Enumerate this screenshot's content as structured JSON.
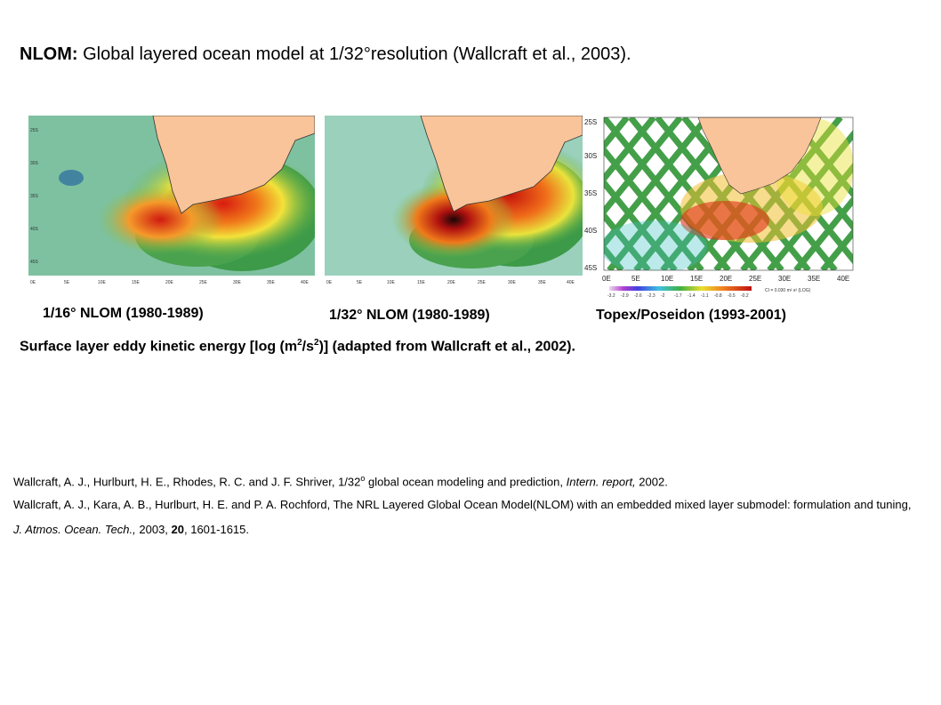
{
  "header": {
    "title_bold": "NLOM:",
    "title_rest": " Global layered ocean model at 1/32°resolution (Wallcraft et al., 2003)."
  },
  "panels": [
    {
      "label": "1/16° NLOM (1980-1989)",
      "lat_ticks": [
        "25S",
        "30S",
        "35S",
        "40S",
        "45S"
      ],
      "lon_ticks": [
        "0E",
        "5E",
        "10E",
        "15E",
        "20E",
        "25E",
        "30E",
        "35E",
        "40E"
      ]
    },
    {
      "label": "1/32° NLOM (1980-1989)",
      "lat_ticks": [],
      "lon_ticks": [
        "0E",
        "5E",
        "10E",
        "15E",
        "20E",
        "25E",
        "30E",
        "35E",
        "40E"
      ]
    },
    {
      "label": "Topex/Poseidon (1993-2001)",
      "lat_ticks": [
        "25S",
        "30S",
        "35S",
        "40S",
        "45S"
      ],
      "lon_ticks": [
        "0E",
        "5E",
        "10E",
        "15E",
        "20E",
        "25E",
        "30E",
        "35E",
        "40E"
      ],
      "colorbar_ticks": [
        "-3.2",
        "-2.9",
        "-2.6",
        "-2.3",
        "-2",
        "-1.7",
        "-1.4",
        "-1.1",
        "-0.8",
        "-0.5",
        "-0.2"
      ],
      "colorbar_note": "CI = 0.030 m² s² (LOG)"
    }
  ],
  "caption": {
    "pre": "Surface layer eddy kinetic energy [log (m",
    "sup1": "2",
    "mid": "/s",
    "sup2": "2",
    "post": ")] (adapted from Wallcraft et al., 2002)."
  },
  "references": {
    "ref1": {
      "text": "Wallcraft, A. J., Hurlburt, H. E., Rhodes, R. C. and J. F. Shriver, 1/32",
      "sup": "o",
      "text2": " global ocean modeling and prediction, ",
      "journal": "Intern. report,",
      "tail": " 2002."
    },
    "ref2": {
      "text": "Wallcraft, A. J., Kara, A. B., Hurlburt, H. E. and P. A. Rochford, The NRL Layered Global Ocean Model(NLOM) with an embedded mixed layer submodel: formulation and tuning, ",
      "journal": "J.  Atmos. Ocean. Tech.,",
      "year": " 2003, ",
      "volume": "20",
      "pages": ", 1601-1615."
    }
  },
  "colors": {
    "land": "#f9c49a",
    "ocean_low": "#9fd3c2",
    "ocean_mid": "#3a9a4a",
    "high": "#e0281c",
    "peak": "#2a0a0a"
  }
}
